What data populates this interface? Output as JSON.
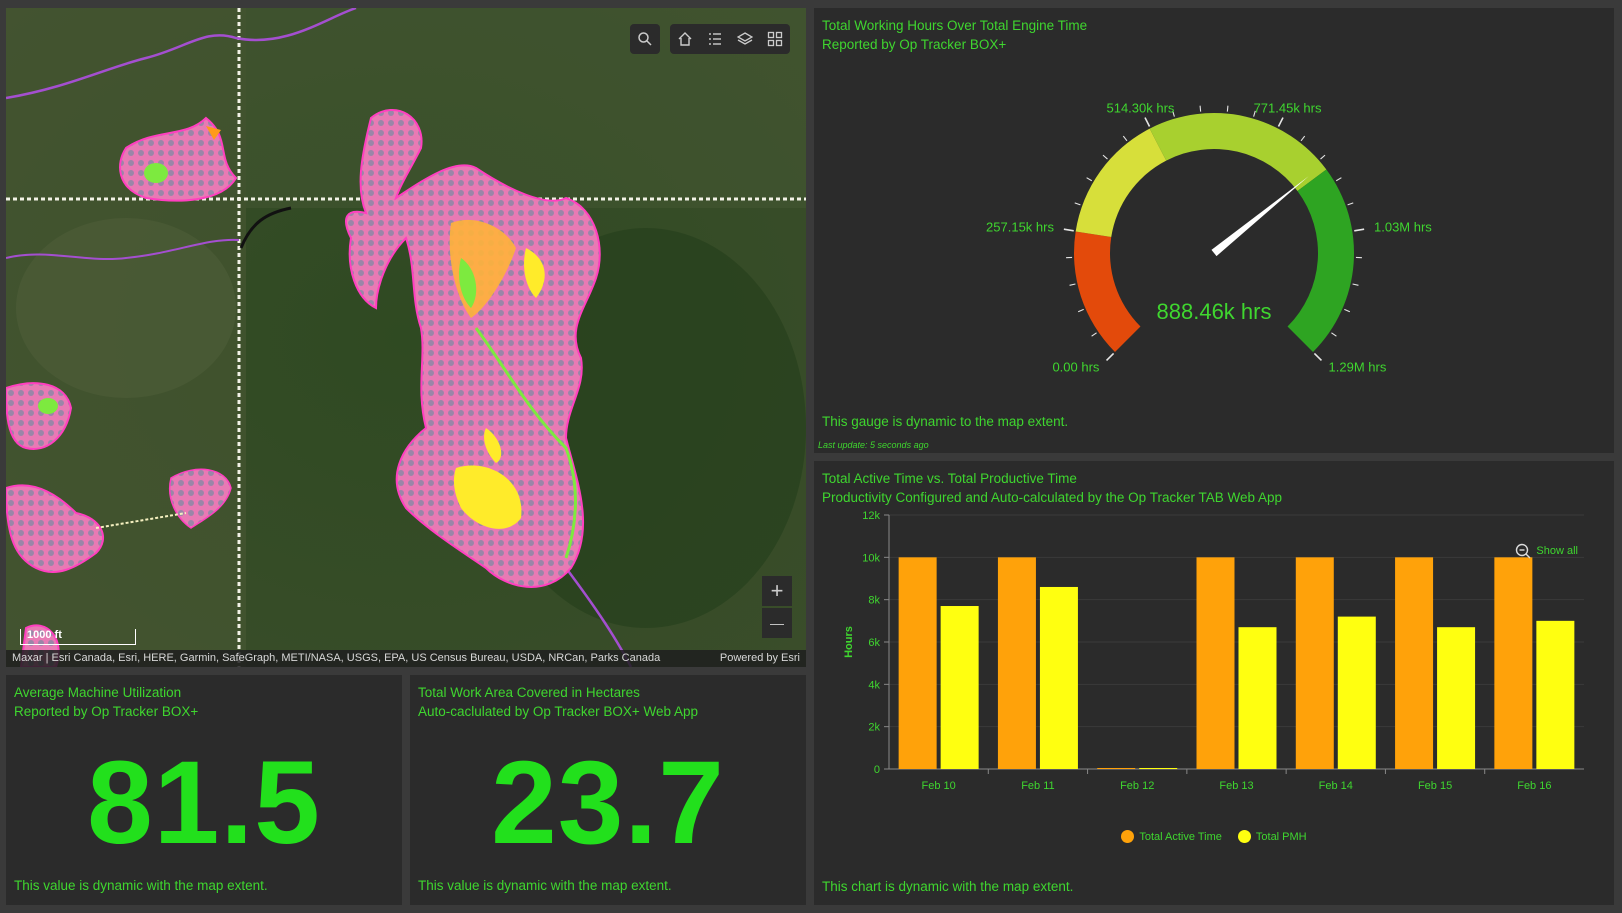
{
  "map": {
    "attribution": "Maxar | Esri Canada, Esri, HERE, Garmin, SafeGraph, METI/NASA, USGS, EPA, US Census Bureau, USDA, NRCan, Parks Canada",
    "powered_by": "Powered by Esri",
    "scale_label": "1000 ft",
    "zoom_in": "+",
    "zoom_out": "—",
    "toolbar_icons": [
      "search-icon",
      "home-icon",
      "list-icon",
      "layers-icon",
      "basemap-gallery-icon"
    ]
  },
  "gauge": {
    "title_line1": "Total Working Hours Over Total Engine Time",
    "title_line2": "Reported by Op Tracker BOX+",
    "value_label": "888.46k hrs",
    "value": 888460,
    "min": 0,
    "max": 1290000,
    "tick_labels": [
      "0.00 hrs",
      "257.15k hrs",
      "514.30k hrs",
      "771.45k hrs",
      "1.03M hrs",
      "1.29M hrs"
    ],
    "bands": [
      {
        "from": 0,
        "to": 257150,
        "color": "#e34a0b"
      },
      {
        "from": 257150,
        "to": 514300,
        "color": "#d7df3a"
      },
      {
        "from": 514300,
        "to": 900000,
        "color": "#a8d02f"
      },
      {
        "from": 900000,
        "to": 1290000,
        "color": "#2ea422"
      }
    ],
    "footer": "This gauge is dynamic to the map extent.",
    "last_update": "Last update: 5 seconds ago"
  },
  "chart_panel": {
    "title_line1": "Total Active Time vs. Total Productive Time",
    "title_line2": "Productivity Configured and Auto-calculated by the Op Tracker TAB Web App",
    "show_all": "Show all",
    "footer": "This chart is dynamic with the map extent."
  },
  "chart_data": {
    "type": "bar",
    "categories": [
      "Feb 10",
      "Feb 11",
      "Feb 12",
      "Feb 13",
      "Feb 14",
      "Feb 15",
      "Feb 16"
    ],
    "series": [
      {
        "name": "Total Active Time",
        "color": "#ffa20a",
        "values": [
          10000,
          10000,
          0,
          10000,
          10000,
          10000,
          10000
        ]
      },
      {
        "name": "Total PMH",
        "color": "#ffff10",
        "values": [
          7700,
          8600,
          0,
          6700,
          7200,
          6700,
          7000
        ]
      }
    ],
    "ylabel": "Hours",
    "ylim": [
      0,
      12000
    ],
    "yticks": [
      0,
      2000,
      4000,
      6000,
      8000,
      10000,
      12000
    ],
    "ytick_labels": [
      "0",
      "2k",
      "4k",
      "6k",
      "8k",
      "10k",
      "12k"
    ],
    "legend": "bottom"
  },
  "utilization": {
    "title_line1": "Average Machine Utilization",
    "title_line2": "Reported by Op Tracker BOX+",
    "value": "81.5",
    "footer": "This value is dynamic with the map extent."
  },
  "work_area": {
    "title_line1": "Total Work Area Covered in Hectares",
    "title_line2": "Auto-caclulated by Op Tracker BOX+ Web App",
    "value": "23.7",
    "footer": "This value is dynamic with the map extent."
  }
}
